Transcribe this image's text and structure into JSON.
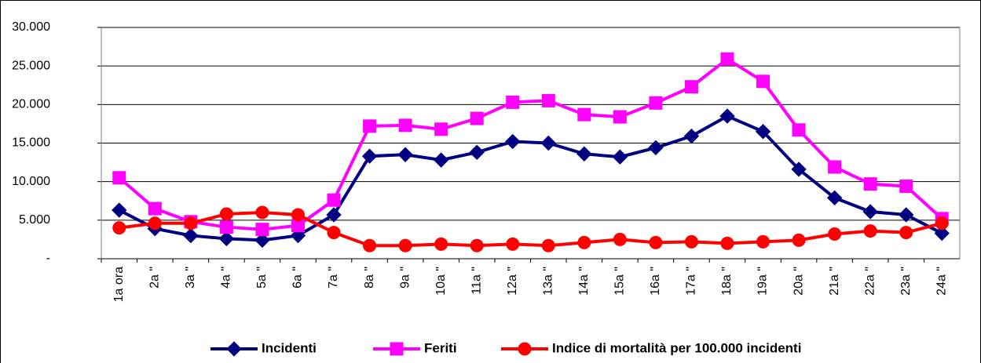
{
  "chart_data": {
    "type": "line",
    "categories": [
      "1a  ora",
      "2a \"",
      "3a \"",
      "4a \"",
      "5a \"",
      "6a \"",
      "7a \"",
      "8a \"",
      "9a \"",
      "10a \"",
      "11a \"",
      "12a \"",
      "13a \"",
      "14a \"",
      "15a \"",
      "16a \"",
      "17a \"",
      "18a \"",
      "19a \"",
      "20a \"",
      "21a \"",
      "22a \"",
      "23a \"",
      "24a \""
    ],
    "series": [
      {
        "name": "Incidenti",
        "color": "#000080",
        "marker": "diamond",
        "values": [
          6300,
          3900,
          3000,
          2600,
          2400,
          3000,
          5700,
          13300,
          13500,
          12800,
          13800,
          15200,
          15000,
          13600,
          13200,
          14400,
          15900,
          18500,
          16500,
          11600,
          7900,
          6100,
          5700,
          3300
        ]
      },
      {
        "name": "Feriti",
        "color": "#ff00ff",
        "marker": "square",
        "values": [
          10500,
          6500,
          4800,
          4100,
          3800,
          4300,
          7600,
          17200,
          17300,
          16800,
          18200,
          20300,
          20500,
          18700,
          18400,
          20200,
          22300,
          25900,
          23000,
          16700,
          11900,
          9700,
          9400,
          5200
        ]
      },
      {
        "name": "Indice di mortalità per 100.000 incidenti",
        "color": "#ff0000",
        "marker": "circle",
        "values": [
          4000,
          4600,
          4600,
          5800,
          6000,
          5700,
          3400,
          1700,
          1700,
          1900,
          1700,
          1900,
          1700,
          2100,
          2500,
          2100,
          2200,
          2000,
          2200,
          2400,
          3200,
          3600,
          3400,
          4600
        ]
      }
    ],
    "ylim": [
      0,
      30000
    ],
    "yticks": [
      {
        "value": 0,
        "label": "-"
      },
      {
        "value": 5000,
        "label": "5.000"
      },
      {
        "value": 10000,
        "label": "10.000"
      },
      {
        "value": 15000,
        "label": "15.000"
      },
      {
        "value": 20000,
        "label": "20.000"
      },
      {
        "value": 25000,
        "label": "25.000"
      },
      {
        "value": 30000,
        "label": "30.000"
      }
    ],
    "grid": true,
    "legend": "bottom"
  }
}
